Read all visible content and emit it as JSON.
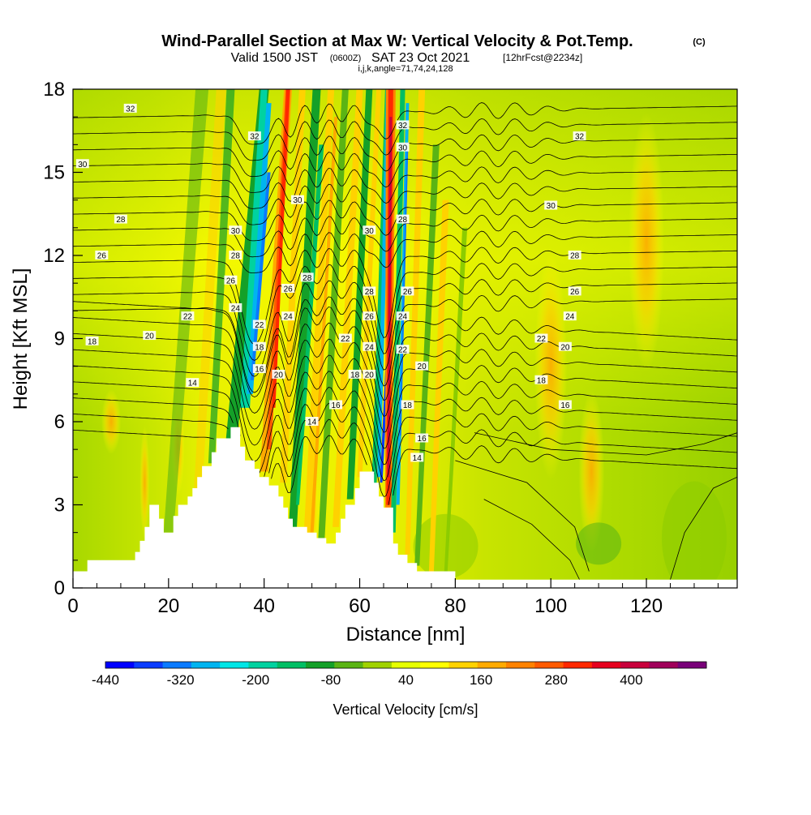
{
  "chart_data": {
    "type": "heatmap",
    "title": "Wind-Parallel Section at Max W: Vertical Velocity & Pot.Temp.",
    "title_mark": "(C)",
    "subtitle": {
      "valid": "Valid 1500 JST",
      "zulu": "(0600Z)",
      "date": "SAT 23 Oct 2021",
      "fcst": "[12hrFcst@2234z]"
    },
    "indices_line": "i,j,k,angle=71,74,24,128",
    "xlabel": "Distance [nm]",
    "ylabel": "Height [Kft MSL]",
    "xlim": [
      0,
      139
    ],
    "ylim": [
      0,
      18
    ],
    "xticks": [
      0,
      20,
      40,
      60,
      80,
      100,
      120
    ],
    "yticks": [
      0,
      3,
      6,
      9,
      12,
      15,
      18
    ],
    "colorbar": {
      "label": "Vertical Velocity [cm/s]",
      "tick_labels": [
        "-440",
        "-320",
        "-200",
        "-80",
        "40",
        "160",
        "280",
        "400"
      ],
      "tick_values": [
        -440,
        -320,
        -200,
        -80,
        40,
        160,
        280,
        400
      ],
      "range": [
        -440,
        520
      ],
      "colors": [
        "#0000ff",
        "#0a3cff",
        "#0a7aff",
        "#00b4f0",
        "#00e6e6",
        "#00d2a0",
        "#00be64",
        "#14a028",
        "#5ab414",
        "#a0d200",
        "#e6ff00",
        "#ffff00",
        "#ffd200",
        "#ffaa00",
        "#ff8200",
        "#ff5a00",
        "#ff2800",
        "#e6001e",
        "#c8003c",
        "#a0005a",
        "#780078"
      ]
    },
    "terrain": [
      [
        0,
        0.6
      ],
      [
        3,
        0.6
      ],
      [
        3,
        1.0
      ],
      [
        10,
        1.0
      ],
      [
        13,
        1.0
      ],
      [
        13,
        1.3
      ],
      [
        14,
        1.3
      ],
      [
        14,
        1.7
      ],
      [
        15,
        1.7
      ],
      [
        15,
        2.2
      ],
      [
        16,
        2.2
      ],
      [
        16,
        3.0
      ],
      [
        18,
        3.0
      ],
      [
        18,
        2.5
      ],
      [
        19,
        2.5
      ],
      [
        19,
        2.0
      ],
      [
        21,
        2.0
      ],
      [
        21,
        2.6
      ],
      [
        22,
        2.6
      ],
      [
        22,
        3.0
      ],
      [
        24,
        3.0
      ],
      [
        24,
        3.3
      ],
      [
        25,
        3.3
      ],
      [
        25,
        3.6
      ],
      [
        26,
        3.6
      ],
      [
        26,
        4.0
      ],
      [
        27,
        4.0
      ],
      [
        27,
        4.4
      ],
      [
        29,
        4.4
      ],
      [
        29,
        4.9
      ],
      [
        30,
        4.9
      ],
      [
        30,
        5.4
      ],
      [
        33,
        5.4
      ],
      [
        33,
        5.8
      ],
      [
        35,
        5.8
      ],
      [
        35,
        5.1
      ],
      [
        36,
        5.1
      ],
      [
        36,
        4.6
      ],
      [
        38,
        4.6
      ],
      [
        38,
        4.3
      ],
      [
        39,
        4.3
      ],
      [
        39,
        4.0
      ],
      [
        41,
        4.0
      ],
      [
        41,
        3.7
      ],
      [
        43,
        3.7
      ],
      [
        43,
        3.3
      ],
      [
        44,
        3.3
      ],
      [
        44,
        2.9
      ],
      [
        45,
        2.9
      ],
      [
        45,
        2.5
      ],
      [
        46,
        2.5
      ],
      [
        46,
        2.2
      ],
      [
        49,
        2.2
      ],
      [
        49,
        2.0
      ],
      [
        51,
        2.0
      ],
      [
        51,
        1.8
      ],
      [
        53,
        1.8
      ],
      [
        53,
        1.6
      ],
      [
        55,
        1.6
      ],
      [
        55,
        2.0
      ],
      [
        56,
        2.0
      ],
      [
        56,
        2.5
      ],
      [
        57,
        2.5
      ],
      [
        57,
        3.0
      ],
      [
        59,
        3.0
      ],
      [
        59,
        3.6
      ],
      [
        60,
        3.6
      ],
      [
        60,
        4.2
      ],
      [
        63,
        4.2
      ],
      [
        63,
        3.8
      ],
      [
        64,
        3.8
      ],
      [
        64,
        3.3
      ],
      [
        65,
        3.3
      ],
      [
        65,
        2.9
      ],
      [
        67,
        2.9
      ],
      [
        67,
        1.6
      ],
      [
        68,
        1.6
      ],
      [
        68,
        1.2
      ],
      [
        70,
        1.2
      ],
      [
        70,
        0.9
      ],
      [
        72,
        0.9
      ],
      [
        72,
        0.6
      ],
      [
        80,
        0.6
      ],
      [
        80,
        0.3
      ],
      [
        139,
        0.3
      ],
      [
        139,
        0
      ]
    ],
    "contour_labels": [
      {
        "x": 12,
        "y": 17.3,
        "text": "32"
      },
      {
        "x": 38,
        "y": 16.3,
        "text": "32"
      },
      {
        "x": 69,
        "y": 16.7,
        "text": "32"
      },
      {
        "x": 106,
        "y": 16.3,
        "text": "32"
      },
      {
        "x": 2,
        "y": 15.3,
        "text": "30"
      },
      {
        "x": 47,
        "y": 14.0,
        "text": "30"
      },
      {
        "x": 62,
        "y": 12.9,
        "text": "30"
      },
      {
        "x": 69,
        "y": 15.9,
        "text": "30"
      },
      {
        "x": 100,
        "y": 13.8,
        "text": "30"
      },
      {
        "x": 34,
        "y": 12.9,
        "text": "30"
      },
      {
        "x": 10,
        "y": 13.3,
        "text": "28"
      },
      {
        "x": 34,
        "y": 12.0,
        "text": "28"
      },
      {
        "x": 49,
        "y": 11.2,
        "text": "28"
      },
      {
        "x": 62,
        "y": 10.7,
        "text": "28"
      },
      {
        "x": 69,
        "y": 13.3,
        "text": "28"
      },
      {
        "x": 105,
        "y": 12.0,
        "text": "28"
      },
      {
        "x": 6,
        "y": 12.0,
        "text": "26"
      },
      {
        "x": 33,
        "y": 11.1,
        "text": "26"
      },
      {
        "x": 45,
        "y": 10.8,
        "text": "26"
      },
      {
        "x": 62,
        "y": 9.8,
        "text": "26"
      },
      {
        "x": 70,
        "y": 10.7,
        "text": "26"
      },
      {
        "x": 105,
        "y": 10.7,
        "text": "26"
      },
      {
        "x": 34,
        "y": 10.1,
        "text": "24"
      },
      {
        "x": 45,
        "y": 9.8,
        "text": "24"
      },
      {
        "x": 62,
        "y": 8.7,
        "text": "24"
      },
      {
        "x": 69,
        "y": 9.8,
        "text": "24"
      },
      {
        "x": 104,
        "y": 9.8,
        "text": "24"
      },
      {
        "x": 24,
        "y": 9.8,
        "text": "22"
      },
      {
        "x": 39,
        "y": 9.5,
        "text": "22"
      },
      {
        "x": 57,
        "y": 9.0,
        "text": "22"
      },
      {
        "x": 69,
        "y": 8.6,
        "text": "22"
      },
      {
        "x": 98,
        "y": 9.0,
        "text": "22"
      },
      {
        "x": 16,
        "y": 9.1,
        "text": "20"
      },
      {
        "x": 43,
        "y": 7.7,
        "text": "20"
      },
      {
        "x": 62,
        "y": 7.7,
        "text": "20"
      },
      {
        "x": 73,
        "y": 8.0,
        "text": "20"
      },
      {
        "x": 103,
        "y": 8.7,
        "text": "20"
      },
      {
        "x": 4,
        "y": 8.9,
        "text": "18"
      },
      {
        "x": 39,
        "y": 8.7,
        "text": "18"
      },
      {
        "x": 59,
        "y": 7.7,
        "text": "18"
      },
      {
        "x": 70,
        "y": 6.6,
        "text": "18"
      },
      {
        "x": 98,
        "y": 7.5,
        "text": "18"
      },
      {
        "x": 39,
        "y": 7.9,
        "text": "16"
      },
      {
        "x": 55,
        "y": 6.6,
        "text": "16"
      },
      {
        "x": 73,
        "y": 5.4,
        "text": "16"
      },
      {
        "x": 103,
        "y": 6.6,
        "text": "16"
      },
      {
        "x": 25,
        "y": 7.4,
        "text": "14"
      },
      {
        "x": 50,
        "y": 6.0,
        "text": "14"
      },
      {
        "x": 72,
        "y": 4.7,
        "text": "14"
      }
    ]
  }
}
